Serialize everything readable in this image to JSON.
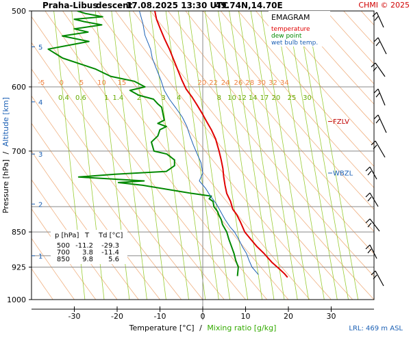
{
  "header": {
    "station": "Praha-Libus",
    "mode": "descent",
    "datetime": "17.08.2025 13:30 UTC",
    "position": "49.74N,14.70E",
    "copyright": "CHMI © 2025"
  },
  "legend": {
    "title": "EMAGRAM",
    "temperature": "temperature",
    "dew_point": "dew point",
    "wet_bulb": "wet bulb temp."
  },
  "axes": {
    "ylabel_pressure": "Pressure [hPa]",
    "ylabel_sep": "/",
    "ylabel_altitude": "Altitude [km]",
    "xlabel_temp": "Temperature [°C]",
    "xlabel_sep": "/",
    "xlabel_mix": "Mixing ratio [g/kg]",
    "lrl": "LRL: 469 m ASL"
  },
  "levels": {
    "fzlv": "FZLV",
    "wbzl": "WBZL"
  },
  "table": {
    "header": [
      "p [hPa]",
      "T",
      "Td [°C]"
    ],
    "rows": [
      [
        "500",
        "-11.2",
        "-29.3"
      ],
      [
        "700",
        "3.8",
        "-11.4"
      ],
      [
        "850",
        "9.8",
        "5.6"
      ]
    ]
  },
  "colors": {
    "temperature": "#e00000",
    "dew_point": "#008800",
    "wet_bulb": "#1a5fb4",
    "dry_adiabat": "#f0b080",
    "mixing_ratio": "#99cc33",
    "grid": "#888888",
    "levels": "#c00000",
    "wbzl": "#1a5fb4"
  },
  "chart_data": {
    "type": "line",
    "title": "EMAGRAM",
    "xlabel": "Temperature [°C] / Mixing ratio [g/kg]",
    "ylabel": "Pressure [hPa] / Altitude [km]",
    "xlim": [
      -40,
      40
    ],
    "ylim": [
      1000,
      500
    ],
    "yscale": "log",
    "x_ticks": [
      -30,
      -20,
      -10,
      0,
      10,
      20,
      30
    ],
    "pressure_ticks": [
      500,
      600,
      700,
      850,
      925,
      1000
    ],
    "pressure_grid": [
      500,
      600,
      700,
      800,
      850,
      900,
      925,
      1000
    ],
    "altitude_ticks": [
      {
        "label": "1",
        "p": 900
      },
      {
        "label": "2",
        "p": 795
      },
      {
        "label": "3",
        "p": 705
      },
      {
        "label": "4",
        "p": 622
      },
      {
        "label": "5",
        "p": 545
      }
    ],
    "dry_adiabat_labels": [
      {
        "label": "-5",
        "x": -37.7
      },
      {
        "label": "0",
        "x": -33.0
      },
      {
        "label": "5",
        "x": -28.3
      },
      {
        "label": "10",
        "x": -23.6
      },
      {
        "label": "15",
        "x": -18.9
      },
      {
        "label": "20",
        "x": -0.2
      },
      {
        "label": "22",
        "x": 2.5
      },
      {
        "label": "24",
        "x": 5.3
      },
      {
        "label": "26",
        "x": 8.3
      },
      {
        "label": "28",
        "x": 11.0
      },
      {
        "label": "30",
        "x": 13.7
      },
      {
        "label": "32",
        "x": 16.4
      },
      {
        "label": "34",
        "x": 19.1
      }
    ],
    "mixing_ratio_labels": [
      {
        "label": "0.4",
        "x": -32.5
      },
      {
        "label": "0.6",
        "x": -28.5
      },
      {
        "label": "1",
        "x": -22.5
      },
      {
        "label": "1.4",
        "x": -19.8
      },
      {
        "label": "2",
        "x": -14.9
      },
      {
        "label": "3",
        "x": -9.2
      },
      {
        "label": "4",
        "x": -5.6
      },
      {
        "label": "8",
        "x": 3.8
      },
      {
        "label": "10",
        "x": 6.8
      },
      {
        "label": "12",
        "x": 9.2
      },
      {
        "label": "14",
        "x": 11.7
      },
      {
        "label": "17",
        "x": 14.4
      },
      {
        "label": "20",
        "x": 17.1
      },
      {
        "label": "25",
        "x": 20.8
      },
      {
        "label": "30",
        "x": 24.4
      }
    ],
    "fzlv_p": 652,
    "wbzl_p": 738,
    "series": [
      {
        "name": "temperature",
        "points": [
          [
            -11.2,
            500
          ],
          [
            -10.8,
            510
          ],
          [
            -9.9,
            522
          ],
          [
            -8.9,
            535
          ],
          [
            -7.8,
            548
          ],
          [
            -6.8,
            562
          ],
          [
            -5.9,
            575
          ],
          [
            -4.9,
            590
          ],
          [
            -3.9,
            603
          ],
          [
            -2.5,
            615
          ],
          [
            -1.3,
            627
          ],
          [
            -0.1,
            640
          ],
          [
            0.9,
            652
          ],
          [
            2.0,
            665
          ],
          [
            3.0,
            680
          ],
          [
            3.8,
            700
          ],
          [
            4.3,
            715
          ],
          [
            4.7,
            730
          ],
          [
            4.9,
            745
          ],
          [
            5.2,
            760
          ],
          [
            5.6,
            775
          ],
          [
            6.5,
            790
          ],
          [
            7.0,
            805
          ],
          [
            7.9,
            815
          ],
          [
            8.8,
            830
          ],
          [
            9.8,
            850
          ],
          [
            11.2,
            865
          ],
          [
            12.6,
            880
          ],
          [
            14.3,
            895
          ],
          [
            16.2,
            915
          ],
          [
            18.0,
            930
          ],
          [
            19.1,
            940
          ],
          [
            19.8,
            948
          ]
        ]
      },
      {
        "name": "dew point",
        "points": [
          [
            -29.3,
            500
          ],
          [
            -27.5,
            503
          ],
          [
            -23.4,
            507
          ],
          [
            -30.0,
            510
          ],
          [
            -27.7,
            513
          ],
          [
            -23.6,
            517
          ],
          [
            -30.0,
            522
          ],
          [
            -26.8,
            526
          ],
          [
            -32.8,
            531
          ],
          [
            -26.6,
            538
          ],
          [
            -36.1,
            548
          ],
          [
            -32.7,
            560
          ],
          [
            -27.5,
            570
          ],
          [
            -25.0,
            575
          ],
          [
            -21.5,
            585
          ],
          [
            -16.0,
            592
          ],
          [
            -13.5,
            600
          ],
          [
            -17.0,
            605
          ],
          [
            -15.0,
            612
          ],
          [
            -11.5,
            618
          ],
          [
            -10.5,
            625
          ],
          [
            -9.6,
            630
          ],
          [
            -9.3,
            640
          ],
          [
            -9.0,
            650
          ],
          [
            -10.5,
            655
          ],
          [
            -8.5,
            660
          ],
          [
            -10.0,
            665
          ],
          [
            -10.5,
            675
          ],
          [
            -12.0,
            685
          ],
          [
            -11.4,
            700
          ],
          [
            -8.4,
            705
          ],
          [
            -6.6,
            715
          ],
          [
            -6.6,
            725
          ],
          [
            -8.5,
            735
          ],
          [
            -20.5,
            740
          ],
          [
            -29.0,
            745
          ],
          [
            -13.7,
            752
          ],
          [
            -19.7,
            755
          ],
          [
            -14.0,
            760
          ],
          [
            -2.5,
            775
          ],
          [
            2.0,
            780
          ],
          [
            1.5,
            785
          ],
          [
            2.4,
            790
          ],
          [
            2.6,
            800
          ],
          [
            3.5,
            810
          ],
          [
            3.7,
            815
          ],
          [
            4.3,
            825
          ],
          [
            4.6,
            835
          ],
          [
            5.6,
            850
          ],
          [
            6.1,
            865
          ],
          [
            6.7,
            880
          ],
          [
            7.3,
            895
          ],
          [
            7.7,
            910
          ],
          [
            8.3,
            925
          ],
          [
            8.1,
            945
          ]
        ]
      },
      {
        "name": "wet bulb temp.",
        "points": [
          [
            -14.8,
            500
          ],
          [
            -14.0,
            515
          ],
          [
            -13.5,
            530
          ],
          [
            -12.2,
            548
          ],
          [
            -11.8,
            560
          ],
          [
            -10.8,
            575
          ],
          [
            -9.8,
            590
          ],
          [
            -9.0,
            605
          ],
          [
            -7.8,
            618
          ],
          [
            -6.2,
            632
          ],
          [
            -4.8,
            645
          ],
          [
            -3.7,
            660
          ],
          [
            -3.0,
            675
          ],
          [
            -2.2,
            690
          ],
          [
            -1.3,
            705
          ],
          [
            -0.4,
            720
          ],
          [
            0.0,
            738
          ],
          [
            -0.8,
            752
          ],
          [
            0.6,
            765
          ],
          [
            1.8,
            780
          ],
          [
            3.2,
            795
          ],
          [
            4.2,
            810
          ],
          [
            5.2,
            825
          ],
          [
            6.4,
            840
          ],
          [
            7.4,
            850
          ],
          [
            8.4,
            865
          ],
          [
            9.2,
            880
          ],
          [
            10.2,
            895
          ],
          [
            10.8,
            910
          ],
          [
            11.5,
            925
          ],
          [
            13.0,
            942
          ]
        ]
      }
    ]
  }
}
